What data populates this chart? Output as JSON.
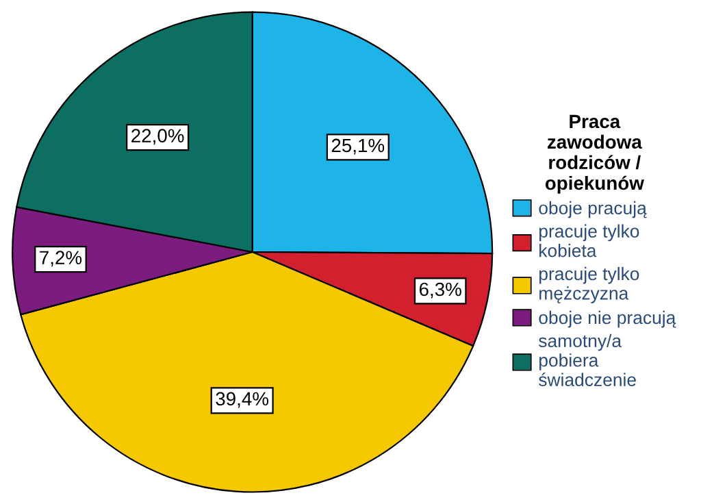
{
  "chart_data": {
    "type": "pie",
    "legend_title": "Praca\nzawodowa\nrodziców /\nopiekunów",
    "categories": [
      "oboje pracują",
      "pracuje tylko\nkobieta",
      "pracuje tylko\nmężczyzna",
      "oboje nie pracują",
      "samotny/a\npobiera\nświadczenie"
    ],
    "values": [
      25.1,
      6.3,
      39.4,
      7.2,
      22.0
    ],
    "colors": [
      "#1eb4e8",
      "#d2202e",
      "#f5c800",
      "#7b1c7e",
      "#0d6e62"
    ],
    "value_labels": [
      "25,1%",
      "6,3%",
      "39,4%",
      "7,2%",
      "22,0%"
    ],
    "legend": "right"
  }
}
